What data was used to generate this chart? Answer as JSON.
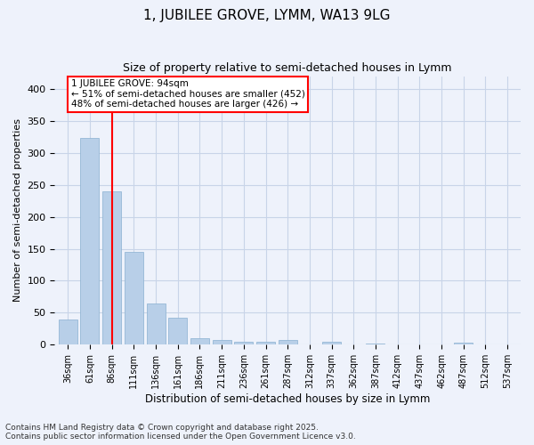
{
  "title1": "1, JUBILEE GROVE, LYMM, WA13 9LG",
  "title2": "Size of property relative to semi-detached houses in Lymm",
  "xlabel": "Distribution of semi-detached houses by size in Lymm",
  "ylabel": "Number of semi-detached properties",
  "categories": [
    "36sqm",
    "61sqm",
    "86sqm",
    "111sqm",
    "136sqm",
    "161sqm",
    "186sqm",
    "211sqm",
    "236sqm",
    "261sqm",
    "287sqm",
    "312sqm",
    "337sqm",
    "362sqm",
    "387sqm",
    "412sqm",
    "437sqm",
    "462sqm",
    "487sqm",
    "512sqm",
    "537sqm"
  ],
  "values": [
    40,
    323,
    240,
    145,
    65,
    42,
    10,
    8,
    4,
    5,
    7,
    0,
    4,
    0,
    2,
    0,
    0,
    0,
    3,
    0,
    0
  ],
  "bar_color": "#b8cfe8",
  "bar_edge_color": "#8ab0d0",
  "vline_x_index": 2,
  "vline_color": "red",
  "annotation_text": "1 JUBILEE GROVE: 94sqm\n← 51% of semi-detached houses are smaller (452)\n48% of semi-detached houses are larger (426) →",
  "annotation_box_color": "white",
  "annotation_box_edge_color": "red",
  "ylim": [
    0,
    420
  ],
  "yticks": [
    0,
    50,
    100,
    150,
    200,
    250,
    300,
    350,
    400
  ],
  "footnote": "Contains HM Land Registry data © Crown copyright and database right 2025.\nContains public sector information licensed under the Open Government Licence v3.0.",
  "bg_color": "#eef2fb",
  "grid_color": "#c8d4e8"
}
